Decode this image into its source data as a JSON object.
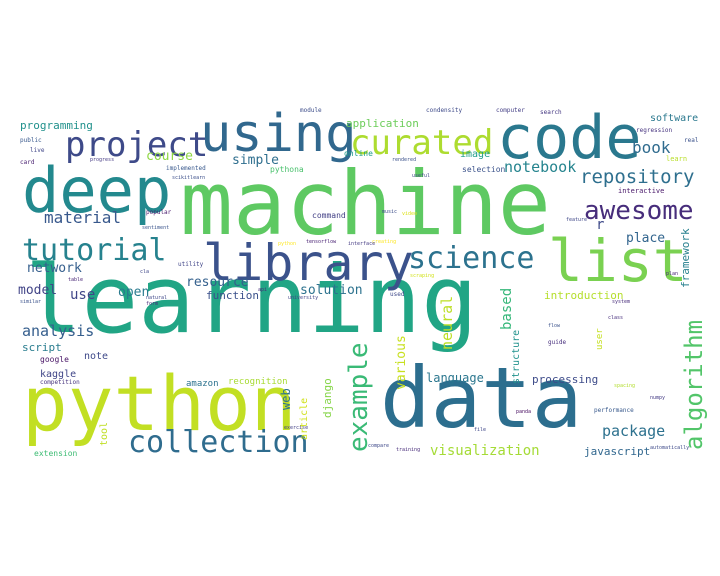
{
  "word_cloud": {
    "words": [
      {
        "text": "learning",
        "color": "#21a585"
      },
      {
        "text": "machine",
        "color": "#5ec962"
      },
      {
        "text": "data",
        "color": "#2c6e8e"
      },
      {
        "text": "python",
        "color": "#c2df23"
      },
      {
        "text": "code",
        "color": "#2a788e"
      },
      {
        "text": "deep",
        "color": "#23898e"
      },
      {
        "text": "using",
        "color": "#31688e"
      },
      {
        "text": "library",
        "color": "#3b528b"
      },
      {
        "text": "list",
        "color": "#7ad151"
      },
      {
        "text": "curated",
        "color": "#addc30"
      },
      {
        "text": "project",
        "color": "#3e4a89"
      },
      {
        "text": "tutorial",
        "color": "#26828e"
      },
      {
        "text": "science",
        "color": "#2c728e"
      },
      {
        "text": "collection",
        "color": "#2f6c8e"
      },
      {
        "text": "awesome",
        "color": "#472d7b"
      },
      {
        "text": "example",
        "color": "#3aba76"
      },
      {
        "text": "algorithm",
        "color": "#52c569"
      },
      {
        "text": "repository",
        "color": "#2e6f8e"
      },
      {
        "text": "material",
        "color": "#38588c"
      },
      {
        "text": "network",
        "color": "#355f8d"
      },
      {
        "text": "analysis",
        "color": "#355e8d"
      },
      {
        "text": "model",
        "color": "#414487"
      },
      {
        "text": "notebook",
        "color": "#25848e"
      },
      {
        "text": "book",
        "color": "#2f6b8e"
      },
      {
        "text": "course",
        "color": "#8fd744"
      },
      {
        "text": "simple",
        "color": "#2e6e8e"
      },
      {
        "text": "package",
        "color": "#2d718e"
      },
      {
        "text": "visualization",
        "color": "#a5db36"
      },
      {
        "text": "neural",
        "color": "#bddf26"
      },
      {
        "text": "based",
        "color": "#35b779"
      },
      {
        "text": "framework",
        "color": "#27808e"
      },
      {
        "text": "resource",
        "color": "#34608d"
      },
      {
        "text": "solution",
        "color": "#2c728e"
      },
      {
        "text": "use",
        "color": "#404688"
      },
      {
        "text": "open",
        "color": "#297a8e"
      },
      {
        "text": "function",
        "color": "#3b518b"
      },
      {
        "text": "script",
        "color": "#287c8e"
      },
      {
        "text": "note",
        "color": "#3e4989"
      },
      {
        "text": "kaggle",
        "color": "#404688"
      },
      {
        "text": "google",
        "color": "#471365"
      },
      {
        "text": "web",
        "color": "#2c718e"
      },
      {
        "text": "django",
        "color": "#86d549"
      },
      {
        "text": "various",
        "color": "#c8e020"
      },
      {
        "text": "language",
        "color": "#2a768e"
      },
      {
        "text": "processing",
        "color": "#3e4c8a"
      },
      {
        "text": "javascript",
        "color": "#31678e"
      },
      {
        "text": "introduction",
        "color": "#b5de2b"
      },
      {
        "text": "structure",
        "color": "#20928c"
      },
      {
        "text": "application",
        "color": "#6ccd5a"
      },
      {
        "text": "programming",
        "color": "#21918c"
      },
      {
        "text": "software",
        "color": "#2a788e"
      },
      {
        "text": "place",
        "color": "#32658e"
      },
      {
        "text": "r",
        "color": "#3e4a89"
      },
      {
        "text": "tool",
        "color": "#c0df25"
      },
      {
        "text": "article",
        "color": "#d0e11c"
      },
      {
        "text": "image",
        "color": "#1f9e89"
      },
      {
        "text": "selection",
        "color": "#3b528b"
      },
      {
        "text": "command",
        "color": "#423f85"
      },
      {
        "text": "online",
        "color": "#1e9d89"
      },
      {
        "text": "pythona",
        "color": "#4ac16d"
      },
      {
        "text": "amazon",
        "color": "#2c728e"
      },
      {
        "text": "recognition",
        "color": "#a8db34"
      },
      {
        "text": "extension",
        "color": "#3dbc74"
      },
      {
        "text": "user",
        "color": "#c5e021"
      },
      {
        "text": "guide",
        "color": "#472f7d"
      },
      {
        "text": "module",
        "color": "#3d4d8a"
      },
      {
        "text": "condensity",
        "color": "#3e4a89"
      },
      {
        "text": "computer",
        "color": "#433e85"
      },
      {
        "text": "search",
        "color": "#453882"
      },
      {
        "text": "regression",
        "color": "#46337f"
      },
      {
        "text": "learn",
        "color": "#b8de29"
      },
      {
        "text": "interactive",
        "color": "#481769"
      },
      {
        "text": "public",
        "color": "#38588c"
      },
      {
        "text": "live",
        "color": "#404688"
      },
      {
        "text": "card",
        "color": "#481f70"
      },
      {
        "text": "progress",
        "color": "#443983"
      },
      {
        "text": "implemented",
        "color": "#38588c"
      },
      {
        "text": "scikitlearn",
        "color": "#3c4f8a"
      },
      {
        "text": "tensorflow",
        "color": "#482173"
      },
      {
        "text": "sentiment",
        "color": "#3a548c"
      },
      {
        "text": "competition",
        "color": "#46327e"
      },
      {
        "text": "popular",
        "color": "#481a6c"
      },
      {
        "text": "utility",
        "color": "#404588"
      },
      {
        "text": "cla",
        "color": "#3f4788"
      },
      {
        "text": "table",
        "color": "#482576"
      },
      {
        "text": "similar",
        "color": "#3b528b"
      },
      {
        "text": "natural",
        "color": "#3f4889"
      },
      {
        "text": "form",
        "color": "#482979"
      },
      {
        "text": "api",
        "color": "#472c7a"
      },
      {
        "text": "university",
        "color": "#414487"
      },
      {
        "text": "used",
        "color": "#3e4989"
      },
      {
        "text": "rendered",
        "color": "#3b528b"
      },
      {
        "text": "useful",
        "color": "#3f4788"
      },
      {
        "text": "video",
        "color": "#dde318"
      },
      {
        "text": "music",
        "color": "#3d4e8a"
      },
      {
        "text": "scraping",
        "color": "#d2e21b"
      },
      {
        "text": "python",
        "color": "#fde725"
      },
      {
        "text": "creating",
        "color": "#fde725"
      },
      {
        "text": "interface",
        "color": "#443a83"
      },
      {
        "text": "system",
        "color": "#472c7a"
      },
      {
        "text": "plan",
        "color": "#482475"
      },
      {
        "text": "exercise",
        "color": "#423f85"
      },
      {
        "text": "compare",
        "color": "#3e4989"
      },
      {
        "text": "training",
        "color": "#472c7a"
      },
      {
        "text": "file",
        "color": "#3f4788"
      },
      {
        "text": "performance",
        "color": "#38598c"
      },
      {
        "text": "automatically",
        "color": "#3e4a89"
      },
      {
        "text": "numpy",
        "color": "#443b84"
      },
      {
        "text": "panda",
        "color": "#470d60"
      },
      {
        "text": "spacing",
        "color": "#b2dd2d"
      },
      {
        "text": "flow",
        "color": "#3b528b"
      },
      {
        "text": "class",
        "color": "#472e7c"
      },
      {
        "text": "feature",
        "color": "#3f4788"
      },
      {
        "text": "real",
        "color": "#3b528b"
      }
    ]
  }
}
